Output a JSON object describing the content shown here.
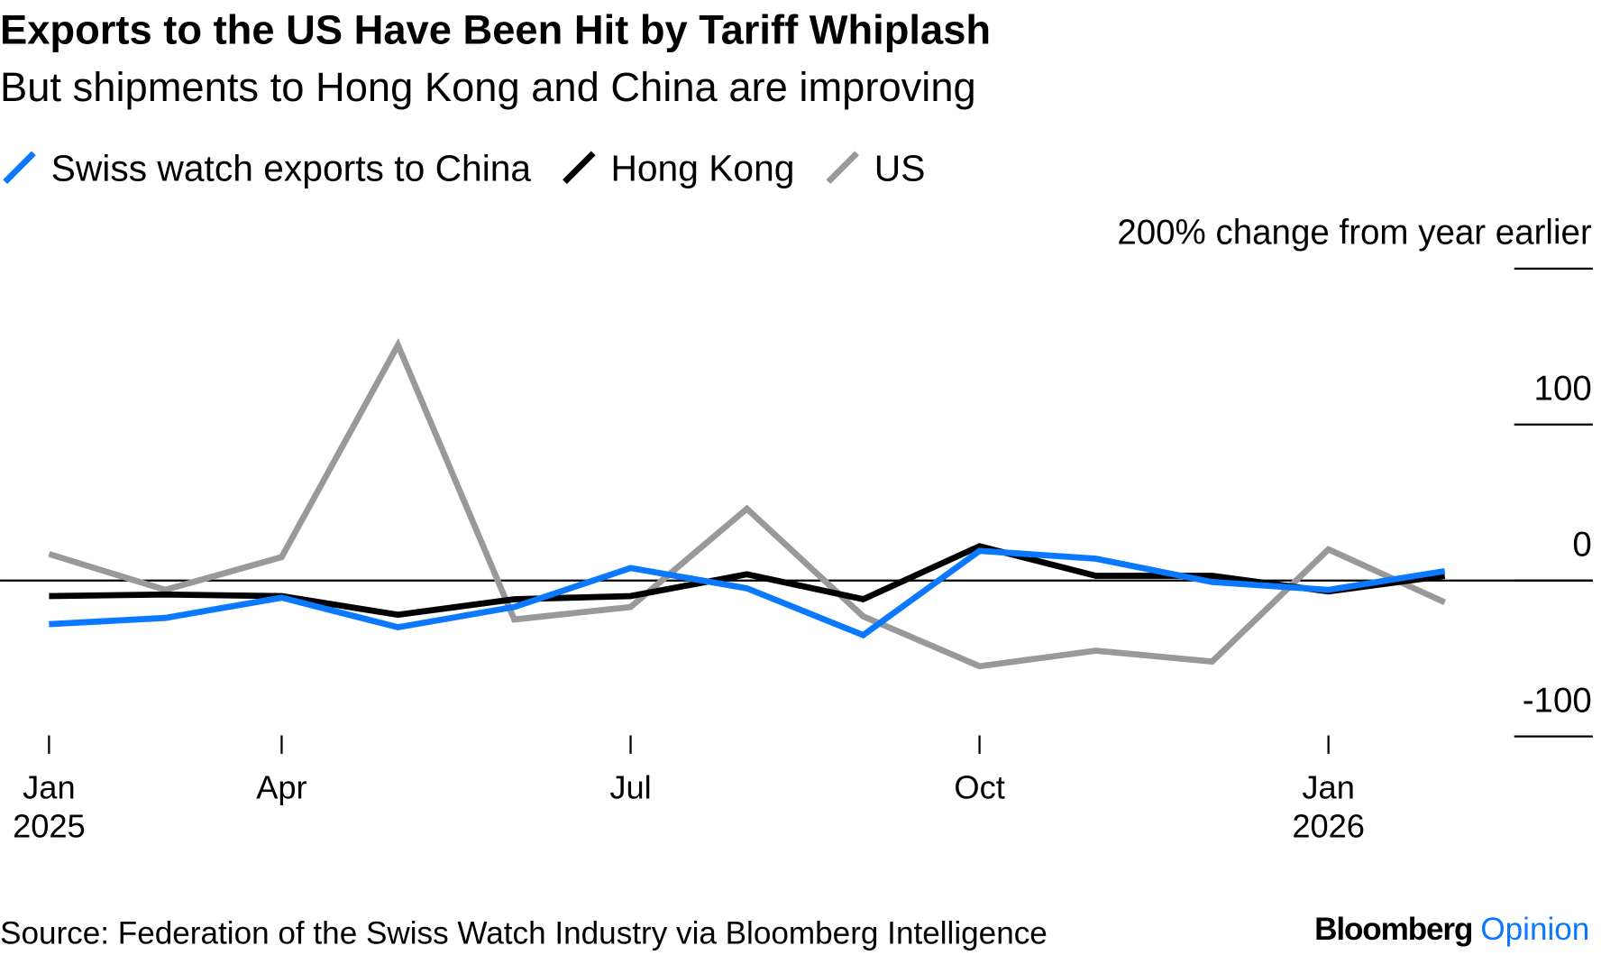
{
  "chart_data": {
    "type": "line",
    "title": "Exports to the US Have Been Hit by Tariff Whiplash",
    "subtitle": "But shipments to Hong Kong and China are improving",
    "categories": [
      "Jan 2025",
      null,
      "Apr",
      null,
      null,
      "Jul",
      null,
      null,
      "Oct",
      null,
      null,
      "Jan 2026",
      null
    ],
    "series": [
      {
        "name": "Swiss watch exports to China",
        "color": "#0a78ff",
        "values": [
          -28,
          -24,
          -11,
          -30,
          -17,
          8,
          -5,
          -35,
          19,
          14,
          -1,
          -6,
          6
        ]
      },
      {
        "name": "Hong Kong",
        "color": "#000000",
        "values": [
          -10,
          -9,
          -10,
          -22,
          -12,
          -10,
          4,
          -12,
          22,
          3,
          3,
          -7,
          3
        ]
      },
      {
        "name": "US",
        "color": "#999999",
        "values": [
          17,
          -6,
          15,
          151,
          -25,
          -17,
          46,
          -23,
          -55,
          -45,
          -52,
          20,
          -14
        ]
      }
    ],
    "ylim": [
      -100,
      200
    ],
    "yticks": [
      -100,
      0,
      100,
      {
        "value": 200,
        "label": "200% change from year earlier"
      }
    ],
    "legend": "top-left",
    "source": "Source: Federation of the Swiss Watch Industry via Bloomberg Intelligence",
    "brand": [
      "Bloomberg",
      "Opinion"
    ]
  }
}
